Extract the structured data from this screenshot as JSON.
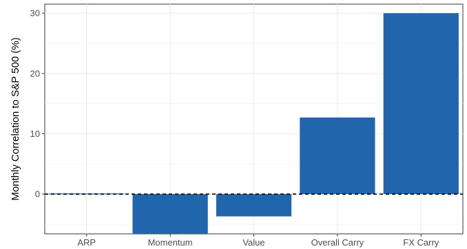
{
  "chart_data": {
    "type": "bar",
    "title": "",
    "xlabel": "",
    "ylabel": "Monthly Correlation to S&P 500 (%)",
    "categories": [
      "ARP",
      "Momentum",
      "Value",
      "Overall Carry",
      "FX Carry"
    ],
    "values": [
      0.1,
      -6.6,
      -3.7,
      12.7,
      30.0
    ],
    "ylim": [
      -6.6,
      31.5
    ],
    "yticks": [
      0,
      10,
      20,
      30
    ],
    "grid": true,
    "reference_line": {
      "y": 0,
      "style": "dashed"
    },
    "bar_color": "#2166ac"
  }
}
